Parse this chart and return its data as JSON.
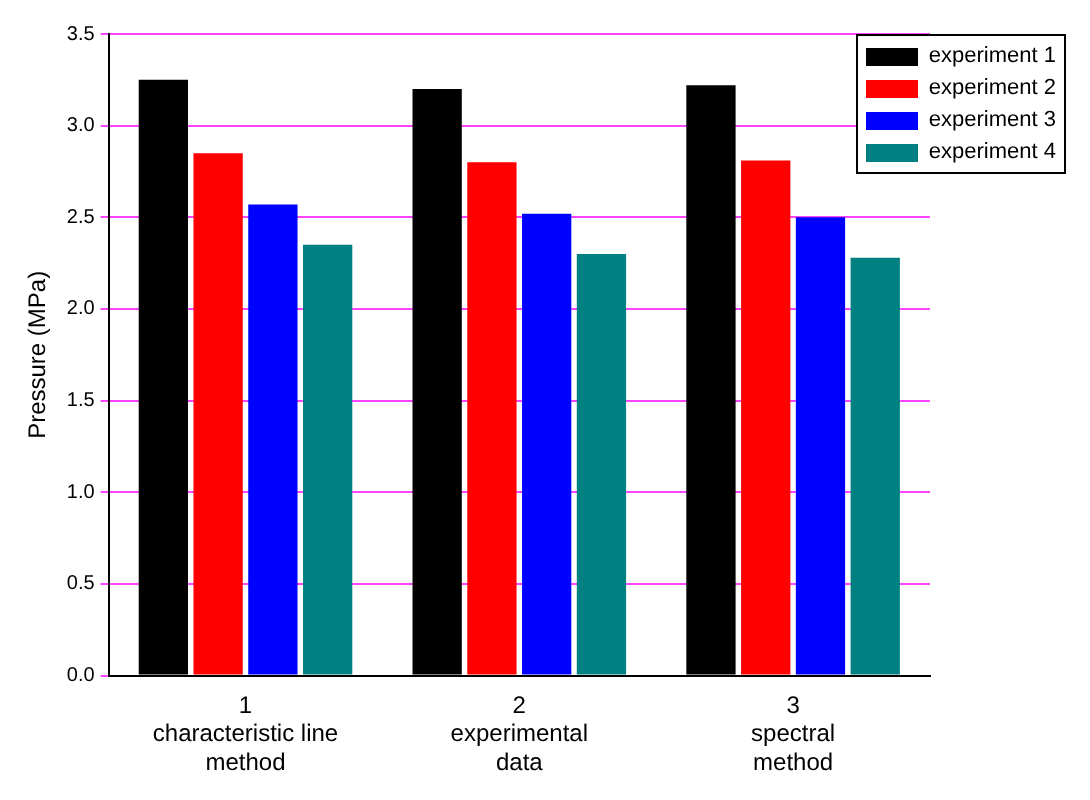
{
  "chart_data": {
    "type": "bar",
    "ylabel": "Pressure (MPa)",
    "categories": [
      "1\ncharacteristic line\nmethod",
      "2\nexperimental\ndata",
      "3\nspectral\nmethod"
    ],
    "series": [
      {
        "name": "experiment 1",
        "color": "#000000",
        "values": [
          3.25,
          3.2,
          3.22
        ]
      },
      {
        "name": "experiment 2",
        "color": "#ff0000",
        "values": [
          2.85,
          2.8,
          2.81
        ]
      },
      {
        "name": "experiment 3",
        "color": "#0000ff",
        "values": [
          2.57,
          2.52,
          2.5
        ]
      },
      {
        "name": "experiment 4",
        "color": "#008080",
        "values": [
          2.35,
          2.3,
          2.28
        ]
      }
    ],
    "ylim": [
      0,
      3.5
    ],
    "yticks": [
      {
        "value": 0,
        "label": "0.0"
      },
      0.5,
      {
        "value": 1,
        "label": "1.0"
      },
      1.5,
      {
        "value": 2,
        "label": "2.0"
      },
      2.5,
      {
        "value": 3,
        "label": "3.0"
      },
      3.5
    ],
    "grid": "y",
    "legend": "top right"
  }
}
